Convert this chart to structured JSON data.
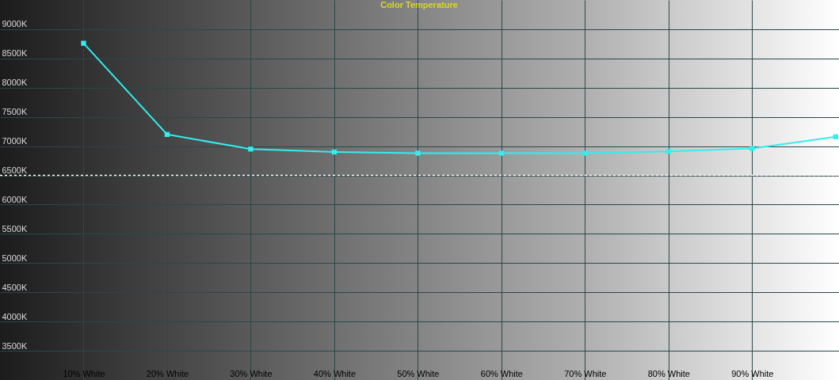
{
  "chart_data": {
    "type": "line",
    "title": "Color Temperature",
    "x": [
      10,
      20,
      30,
      40,
      50,
      60,
      70,
      80,
      90,
      100
    ],
    "series": [
      {
        "color": "#33eeee",
        "values": [
          8760,
          7200,
          6950,
          6900,
          6880,
          6880,
          6880,
          6910,
          6960,
          7160
        ]
      }
    ],
    "xlim": [
      0,
      100.4
    ],
    "xticks": [
      {
        "value": 10,
        "label": "10% White"
      },
      {
        "value": 20,
        "label": "20% White"
      },
      {
        "value": 30,
        "label": "30% White"
      },
      {
        "value": 40,
        "label": "40% White"
      },
      {
        "value": 50,
        "label": "50% White"
      },
      {
        "value": 60,
        "label": "60% White"
      },
      {
        "value": 70,
        "label": "70% White"
      },
      {
        "value": 80,
        "label": "80% White"
      },
      {
        "value": 90,
        "label": "90% White"
      }
    ],
    "ylim": [
      3000,
      9500
    ],
    "yticks": [
      {
        "value": 3500,
        "label": "3500K"
      },
      {
        "value": 4000,
        "label": "4000K"
      },
      {
        "value": 4500,
        "label": "4500K"
      },
      {
        "value": 5000,
        "label": "5000K"
      },
      {
        "value": 5500,
        "label": "5500K"
      },
      {
        "value": 6000,
        "label": "6000K"
      },
      {
        "value": 6500,
        "label": "6500K"
      },
      {
        "value": 7000,
        "label": "7000K"
      },
      {
        "value": 7500,
        "label": "7500K"
      },
      {
        "value": 8000,
        "label": "8000K"
      },
      {
        "value": 8500,
        "label": "8500K"
      },
      {
        "value": 9000,
        "label": "9000K"
      }
    ],
    "grid": true,
    "marker": "square",
    "line_style": "solid",
    "ref_lines": [
      {
        "axis": "y",
        "value": 6500,
        "color": "#ffffff",
        "line_style": "dashed"
      }
    ]
  }
}
